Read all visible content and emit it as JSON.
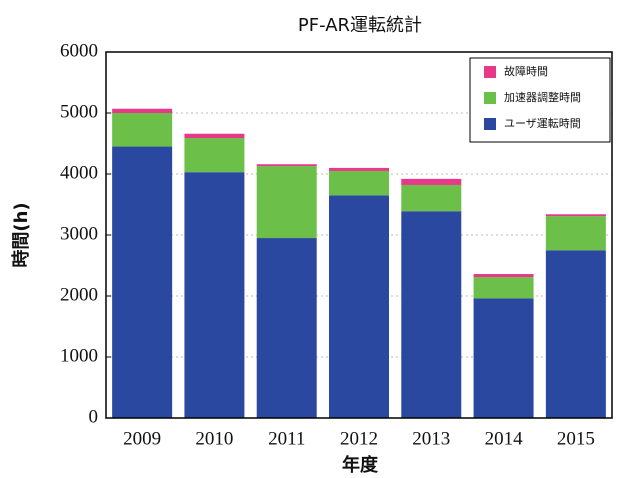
{
  "chart_data": {
    "type": "stacked_bar",
    "title": "PF-AR運転統計",
    "x_label": "年度",
    "y_label": "時間(h)",
    "categories": [
      "2009",
      "2010",
      "2011",
      "2012",
      "2013",
      "2014",
      "2015"
    ],
    "series": [
      {
        "name": "ユーザ運転時間",
        "color": "#2b48a0",
        "values": [
          4450,
          4030,
          2950,
          3650,
          3390,
          1960,
          2750
        ]
      },
      {
        "name": "加速器調整時間",
        "color": "#6cc04a",
        "values": [
          550,
          560,
          1180,
          400,
          430,
          350,
          560
        ]
      },
      {
        "name": "故障時間",
        "color": "#e8388a",
        "values": [
          70,
          70,
          30,
          50,
          100,
          50,
          30
        ]
      }
    ],
    "ylim": [
      0,
      6000
    ],
    "yticks": [
      0,
      1000,
      2000,
      3000,
      4000,
      5000,
      6000
    ],
    "grid": true,
    "legend": "upper right"
  }
}
